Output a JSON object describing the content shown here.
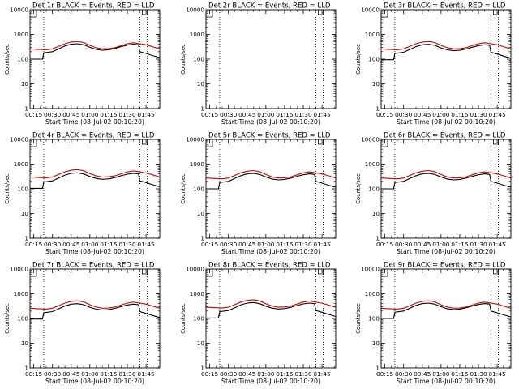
{
  "figure": {
    "panel_title_suffix": "BLACK = Events, RED = LLD",
    "x_axis_label": "Start Time (08-Jul-02 00:10:20)",
    "y_axis_label": "Counts/sec",
    "x_tick_labels": [
      "00:15",
      "00:30",
      "00:45",
      "01:00",
      "01:15",
      "01:30",
      "01:45"
    ],
    "y_tick_labels": [
      "1",
      "10",
      "100",
      "1000",
      "10000"
    ]
  },
  "colors": {
    "events": "#000000",
    "lld": "#cc0000",
    "axes": "#000000",
    "background": "#ffffff"
  },
  "chart_data": [
    {
      "type": "line",
      "title": "Det 1r BLACK = Events, RED = LLD",
      "has_data": true,
      "events_scale": 1.0,
      "lld_scale": 1.0,
      "xlabel": "Start Time (08-Jul-02 00:10:20)",
      "ylabel": "Counts/sec",
      "xlim": [
        12,
        116
      ],
      "ylim": [
        1,
        10000
      ],
      "yscale": "log",
      "x_ticks": [
        "00:15",
        "00:30",
        "00:45",
        "01:00",
        "01:15",
        "01:30",
        "01:45"
      ],
      "marker_lines_minutes": [
        23,
        100,
        106
      ],
      "series": [
        {
          "name": "Events",
          "color": "#000000",
          "x": [
            12,
            22,
            23,
            30,
            35,
            40,
            45,
            50,
            55,
            60,
            65,
            70,
            75,
            80,
            85,
            90,
            95,
            99,
            100,
            105,
            110,
            116
          ],
          "y": [
            100,
            100,
            180,
            200,
            260,
            340,
            400,
            420,
            380,
            300,
            250,
            230,
            240,
            270,
            320,
            370,
            400,
            380,
            200,
            170,
            140,
            115
          ]
        },
        {
          "name": "LLD",
          "color": "#cc0000",
          "x": [
            12,
            18,
            25,
            30,
            35,
            40,
            45,
            50,
            55,
            60,
            65,
            70,
            75,
            80,
            85,
            90,
            95,
            100,
            105,
            110,
            116
          ],
          "y": [
            260,
            250,
            240,
            260,
            330,
            420,
            490,
            520,
            470,
            360,
            290,
            260,
            265,
            290,
            350,
            420,
            460,
            420,
            380,
            320,
            260
          ]
        }
      ]
    },
    {
      "type": "line",
      "title": "Det 2r BLACK = Events, RED = LLD",
      "has_data": false,
      "events_scale": 1.0,
      "lld_scale": 1.0,
      "xlabel": "Start Time (08-Jul-02 00:10:20)",
      "ylabel": "Counts/sec",
      "xlim": [
        12,
        116
      ],
      "ylim": [
        1,
        10000
      ],
      "yscale": "log",
      "x_ticks": [
        "00:15",
        "00:30",
        "00:45",
        "01:00",
        "01:15",
        "01:30",
        "01:45"
      ],
      "marker_lines_minutes": [
        23,
        100,
        106
      ],
      "series": []
    },
    {
      "type": "line",
      "title": "Det 3r BLACK = Events, RED = LLD",
      "has_data": true,
      "events_scale": 0.95,
      "lld_scale": 1.0,
      "xlabel": "Start Time (08-Jul-02 00:10:20)",
      "ylabel": "Counts/sec",
      "xlim": [
        12,
        116
      ],
      "ylim": [
        1,
        10000
      ],
      "yscale": "log",
      "x_ticks": [
        "00:15",
        "00:30",
        "00:45",
        "01:00",
        "01:15",
        "01:30",
        "01:45"
      ],
      "marker_lines_minutes": [
        23,
        100,
        106
      ]
    },
    {
      "type": "line",
      "title": "Det 4r BLACK = Events, RED = LLD",
      "has_data": true,
      "events_scale": 1.05,
      "lld_scale": 1.15,
      "xlabel": "Start Time (08-Jul-02 00:10:20)",
      "ylabel": "Counts/sec",
      "xlim": [
        12,
        116
      ],
      "ylim": [
        1,
        10000
      ],
      "yscale": "log",
      "x_ticks": [
        "00:15",
        "00:30",
        "00:45",
        "01:00",
        "01:15",
        "01:30",
        "01:45"
      ],
      "marker_lines_minutes": [
        23,
        100,
        106
      ]
    },
    {
      "type": "line",
      "title": "Det 5r BLACK = Events, RED = LLD",
      "has_data": true,
      "events_scale": 1.0,
      "lld_scale": 1.05,
      "xlabel": "Start Time (08-Jul-02 00:10:20)",
      "ylabel": "Counts/sec",
      "xlim": [
        12,
        116
      ],
      "ylim": [
        1,
        10000
      ],
      "yscale": "log",
      "x_ticks": [
        "00:15",
        "00:30",
        "00:45",
        "01:00",
        "01:15",
        "01:30",
        "01:45"
      ],
      "marker_lines_minutes": [
        23,
        100,
        106
      ]
    },
    {
      "type": "line",
      "title": "Det 6r BLACK = Events, RED = LLD",
      "has_data": true,
      "events_scale": 1.0,
      "lld_scale": 1.05,
      "xlabel": "Start Time (08-Jul-02 00:10:20)",
      "ylabel": "Counts/sec",
      "xlim": [
        12,
        116
      ],
      "ylim": [
        1,
        10000
      ],
      "yscale": "log",
      "x_ticks": [
        "00:15",
        "00:30",
        "00:45",
        "01:00",
        "01:15",
        "01:30",
        "01:45"
      ],
      "marker_lines_minutes": [
        23,
        100,
        106
      ]
    },
    {
      "type": "line",
      "title": "Det 7r BLACK = Events, RED = LLD",
      "has_data": true,
      "events_scale": 0.95,
      "lld_scale": 1.0,
      "xlabel": "Start Time (08-Jul-02 00:10:20)",
      "ylabel": "Counts/sec",
      "xlim": [
        12,
        116
      ],
      "ylim": [
        1,
        10000
      ],
      "yscale": "log",
      "x_ticks": [
        "00:15",
        "00:30",
        "00:45",
        "01:00",
        "01:15",
        "01:30",
        "01:45"
      ],
      "marker_lines_minutes": [
        23,
        100,
        106
      ]
    },
    {
      "type": "line",
      "title": "Det 8r BLACK = Events, RED = LLD",
      "has_data": true,
      "events_scale": 1.05,
      "lld_scale": 1.1,
      "xlabel": "Start Time (08-Jul-02 00:10:20)",
      "ylabel": "Counts/sec",
      "xlim": [
        12,
        116
      ],
      "ylim": [
        1,
        10000
      ],
      "yscale": "log",
      "x_ticks": [
        "00:15",
        "00:30",
        "00:45",
        "01:00",
        "01:15",
        "01:30",
        "01:45"
      ],
      "marker_lines_minutes": [
        23,
        100,
        106
      ]
    },
    {
      "type": "line",
      "title": "Det 9r BLACK = Events, RED = LLD",
      "has_data": true,
      "events_scale": 1.0,
      "lld_scale": 1.0,
      "xlabel": "Start Time (08-Jul-02 00:10:20)",
      "ylabel": "Counts/sec",
      "xlim": [
        12,
        116
      ],
      "ylim": [
        1,
        10000
      ],
      "yscale": "log",
      "x_ticks": [
        "00:15",
        "00:30",
        "00:45",
        "01:00",
        "01:15",
        "01:30",
        "01:45"
      ],
      "marker_lines_minutes": [
        23,
        100,
        106
      ]
    }
  ]
}
